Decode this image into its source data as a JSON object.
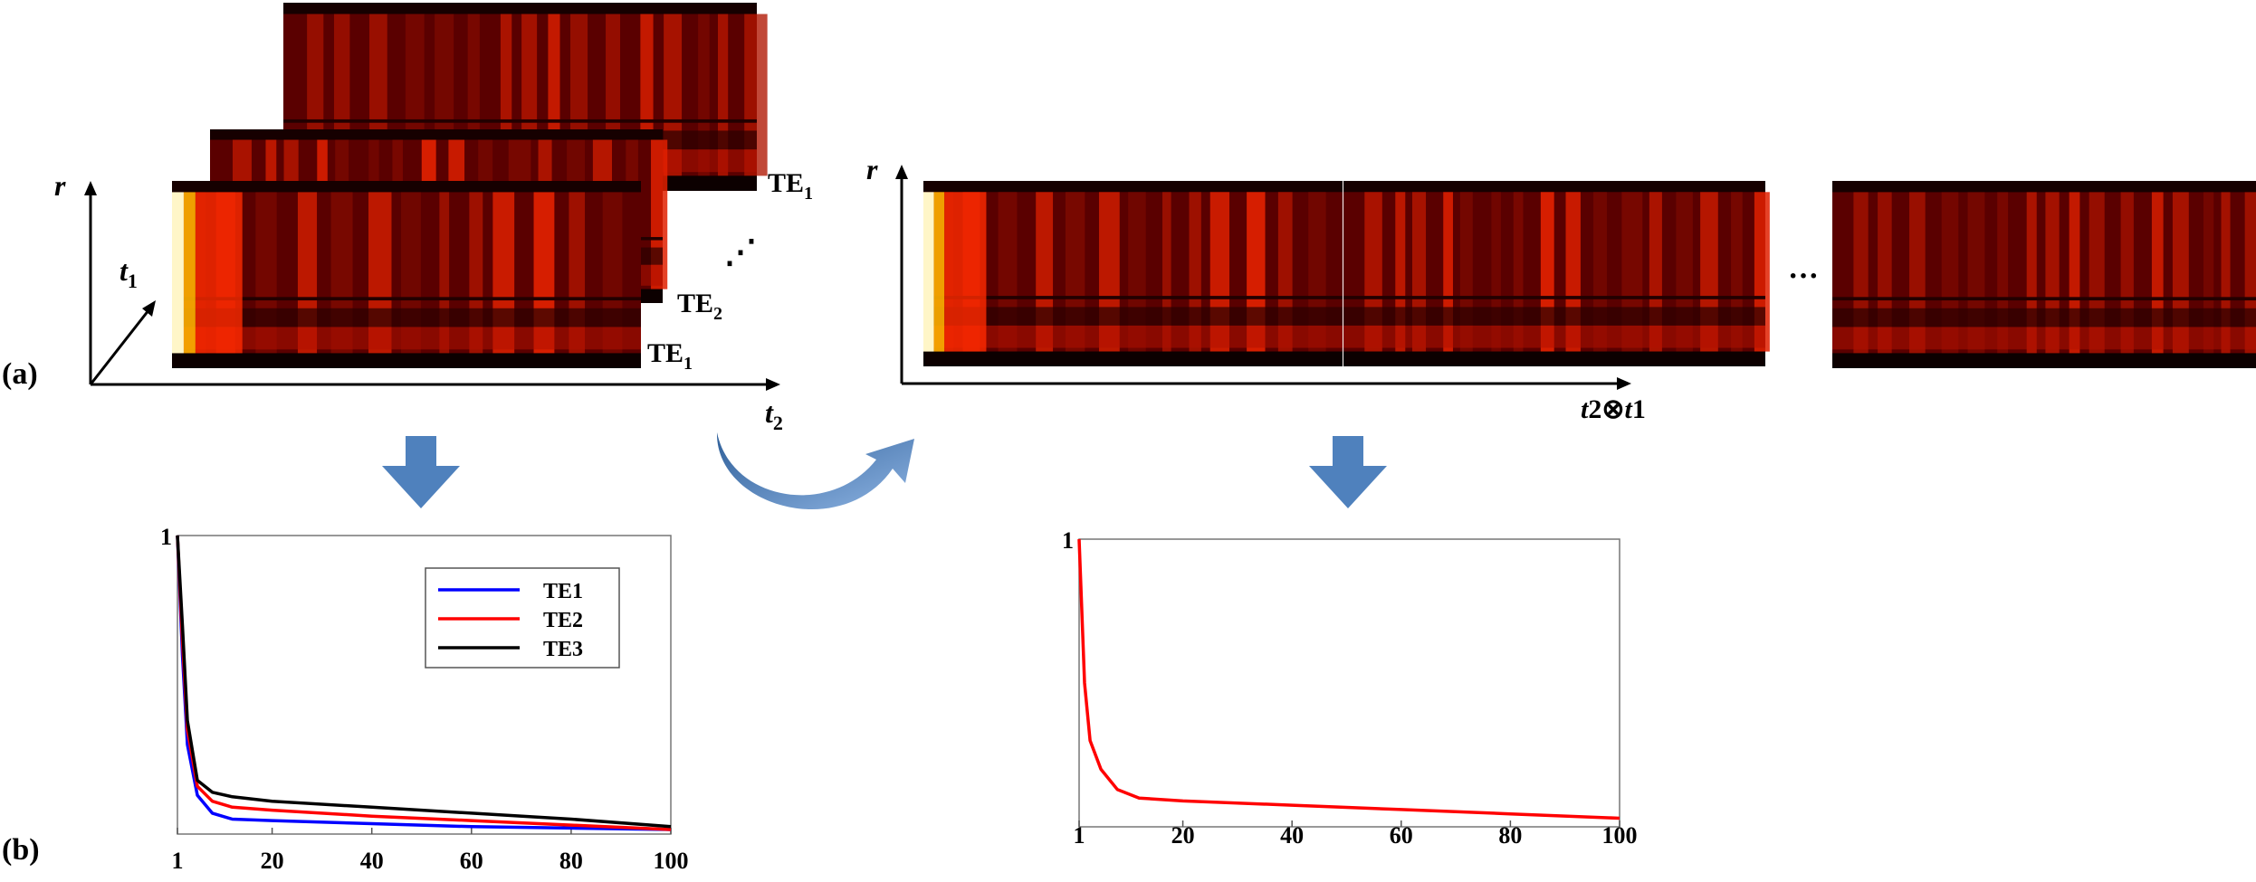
{
  "panel_labels": {
    "a": "(a)",
    "b": "(b)"
  },
  "left_diagram": {
    "axis_r": "r",
    "axis_t1": "t",
    "axis_t1_sub": "1",
    "axis_t2": "t",
    "axis_t2_sub": "2",
    "stack_labels": [
      {
        "base": "TE",
        "sub": "1"
      },
      {
        "base": "TE",
        "sub": "2"
      },
      {
        "base": "TE",
        "sub": "1"
      }
    ],
    "vertical_ellipsis": "⋰"
  },
  "right_diagram": {
    "axis_r": "r",
    "axis_x_part1": "t",
    "axis_x_part2": "2⊗",
    "axis_x_part3": "t",
    "axis_x_part4": "1",
    "ellipsis": "···"
  },
  "colors": {
    "arrow": "#4f81bd",
    "te1": "#0000ff",
    "te2": "#ff0000",
    "te3": "#000000",
    "heatmap_bg": "#1a0000",
    "heatmap_hot": "#ff3300",
    "heatmap_max": "#ffffc0"
  },
  "chart_data": [
    {
      "type": "line",
      "x_ticks": [
        "1",
        "20",
        "40",
        "60",
        "80",
        "100"
      ],
      "y_tick_label": "1",
      "xlim": [
        1,
        100
      ],
      "ylim": [
        0,
        1
      ],
      "legend_position": "top-center",
      "series": [
        {
          "name": "TE1",
          "color": "#0000ff",
          "points": [
            [
              1,
              1.0
            ],
            [
              2,
              0.6
            ],
            [
              3,
              0.3
            ],
            [
              5,
              0.13
            ],
            [
              8,
              0.07
            ],
            [
              12,
              0.05
            ],
            [
              20,
              0.045
            ],
            [
              40,
              0.035
            ],
            [
              60,
              0.025
            ],
            [
              80,
              0.02
            ],
            [
              100,
              0.015
            ]
          ]
        },
        {
          "name": "TE2",
          "color": "#ff0000",
          "points": [
            [
              1,
              1.0
            ],
            [
              2,
              0.65
            ],
            [
              3,
              0.35
            ],
            [
              5,
              0.16
            ],
            [
              8,
              0.11
            ],
            [
              12,
              0.09
            ],
            [
              20,
              0.08
            ],
            [
              40,
              0.06
            ],
            [
              60,
              0.045
            ],
            [
              80,
              0.03
            ],
            [
              100,
              0.015
            ]
          ]
        },
        {
          "name": "TE3",
          "color": "#000000",
          "points": [
            [
              1,
              1.0
            ],
            [
              2,
              0.7
            ],
            [
              3,
              0.38
            ],
            [
              5,
              0.18
            ],
            [
              8,
              0.14
            ],
            [
              12,
              0.125
            ],
            [
              20,
              0.11
            ],
            [
              40,
              0.09
            ],
            [
              60,
              0.07
            ],
            [
              80,
              0.05
            ],
            [
              100,
              0.025
            ]
          ]
        }
      ]
    },
    {
      "type": "line",
      "x_ticks": [
        "1",
        "20",
        "40",
        "60",
        "80",
        "100"
      ],
      "y_tick_label": "1",
      "xlim": [
        1,
        100
      ],
      "ylim": [
        0,
        1
      ],
      "series": [
        {
          "color": "#ff0000",
          "points": [
            [
              1,
              1.0
            ],
            [
              2,
              0.5
            ],
            [
              3,
              0.3
            ],
            [
              5,
              0.2
            ],
            [
              8,
              0.13
            ],
            [
              12,
              0.1
            ],
            [
              20,
              0.09
            ],
            [
              40,
              0.075
            ],
            [
              60,
              0.06
            ],
            [
              80,
              0.045
            ],
            [
              100,
              0.03
            ]
          ]
        }
      ]
    }
  ]
}
